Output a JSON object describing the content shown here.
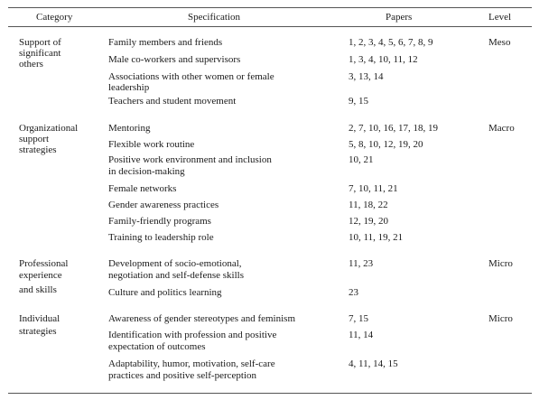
{
  "headers": {
    "category": "Category",
    "specification": "Specification",
    "papers": "Papers",
    "level": "Level"
  },
  "groups": [
    {
      "category": [
        "Support of",
        "significant",
        "others"
      ],
      "level": "Meso",
      "rows": [
        {
          "spec": [
            "Family members and friends"
          ],
          "papers": "1, 2, 3, 4, 5, 6, 7, 8, 9"
        },
        {
          "spec": [
            "Male co-workers and supervisors"
          ],
          "papers": "1, 3, 4, 10, 11, 12"
        },
        {
          "spec": [
            "Associations with other women or female",
            "leadership"
          ],
          "papers": "3, 13, 14"
        },
        {
          "spec": [
            "Teachers and student movement"
          ],
          "papers": "9, 15"
        }
      ]
    },
    {
      "category": [
        "Organizational",
        "support",
        "strategies"
      ],
      "level": "Macro",
      "rows": [
        {
          "spec": [
            "Mentoring"
          ],
          "papers": "2, 7, 10, 16, 17, 18, 19"
        },
        {
          "spec": [
            "Flexible work routine"
          ],
          "papers": "5, 8, 10, 12, 19, 20"
        },
        {
          "spec": [
            "Positive work environment and inclusion",
            "in decision-making"
          ],
          "papers": "10, 21"
        },
        {
          "spec": [
            "Female networks"
          ],
          "papers": "7, 10, 11, 21"
        },
        {
          "spec": [
            "Gender awareness practices"
          ],
          "papers": "11, 18, 22"
        },
        {
          "spec": [
            "Family-friendly programs"
          ],
          "papers": "12, 19, 20"
        },
        {
          "spec": [
            "Training to leadership role"
          ],
          "papers": "10, 11, 19, 21"
        }
      ]
    },
    {
      "category": [
        "Professional",
        "experience",
        "and skills"
      ],
      "level": "Micro",
      "rows": [
        {
          "spec": [
            "Development of socio-emotional,",
            "negotiation and self-defense skills"
          ],
          "papers": "11, 23"
        },
        {
          "spec": [
            "Culture and politics learning"
          ],
          "papers": "23"
        }
      ]
    },
    {
      "category": [
        "Individual",
        "strategies"
      ],
      "level": "Micro",
      "rows": [
        {
          "spec": [
            "Awareness of gender stereotypes and feminism"
          ],
          "papers": "7, 15"
        },
        {
          "spec": [
            "Identification with profession and positive",
            "expectation of outcomes"
          ],
          "papers": "11, 14"
        },
        {
          "spec": [
            "Adaptability, humor, motivation, self-care",
            "practices and positive self-perception"
          ],
          "papers": "4, 11, 14, 15"
        }
      ]
    }
  ]
}
